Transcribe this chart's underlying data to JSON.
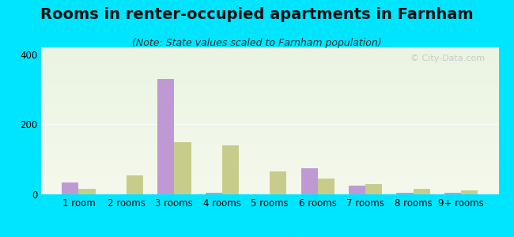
{
  "title": "Rooms in renter-occupied apartments in Farnham",
  "subtitle": "(Note: State values scaled to Farnham population)",
  "categories": [
    "1 room",
    "2 rooms",
    "3 rooms",
    "4 rooms",
    "5 rooms",
    "6 rooms",
    "7 rooms",
    "8 rooms",
    "9+ rooms"
  ],
  "farnham_values": [
    35,
    0,
    330,
    5,
    0,
    75,
    25,
    5,
    5
  ],
  "wheaton_values": [
    15,
    55,
    150,
    140,
    65,
    45,
    30,
    15,
    12
  ],
  "farnham_color": "#bf99d4",
  "wheaton_color": "#c8cc8a",
  "background_outer": "#00e5ff",
  "bg_top": "#eaf4e2",
  "bg_bottom": "#f4f8ec",
  "ylim": [
    0,
    420
  ],
  "yticks": [
    0,
    200,
    400
  ],
  "bar_width": 0.35,
  "title_fontsize": 14,
  "subtitle_fontsize": 9,
  "legend_fontsize": 11,
  "tick_fontsize": 8.5,
  "watermark_text": "© City-Data.com"
}
